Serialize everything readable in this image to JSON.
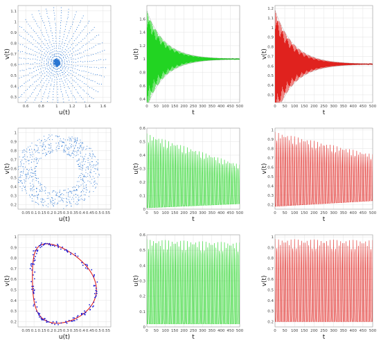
{
  "chart_data": [
    {
      "type": "scatter",
      "row": 0,
      "col": 0,
      "xlabel": "u(t)",
      "ylabel": "v(t)",
      "xlim": [
        0.5,
        1.7
      ],
      "ylim": [
        0.25,
        1.15
      ],
      "xticks": [
        0.6,
        0.8,
        1,
        1.2,
        1.4,
        1.6
      ],
      "yticks": [
        0.3,
        0.4,
        0.5,
        0.6,
        0.7,
        0.8,
        0.9,
        1,
        1.1
      ],
      "kind": "spiral",
      "center": [
        1.0,
        0.62
      ],
      "color": "#2a76d2"
    },
    {
      "type": "line",
      "row": 0,
      "col": 1,
      "xlabel": "t",
      "ylabel": "u(t)",
      "xlim": [
        0,
        500
      ],
      "ylim": [
        0.35,
        1.8
      ],
      "xticks": [
        0,
        50,
        100,
        150,
        200,
        250,
        300,
        350,
        400,
        450,
        500
      ],
      "yticks": [
        0.4,
        0.6,
        0.8,
        1,
        1.2,
        1.4,
        1.6
      ],
      "kind": "decay",
      "center": 1.0,
      "amp0": 0.72,
      "amp_end": 0.0,
      "color": "#22d422"
    },
    {
      "type": "line",
      "row": 0,
      "col": 2,
      "xlabel": "t",
      "ylabel": "v(t)",
      "xlim": [
        0,
        500
      ],
      "ylim": [
        0.22,
        1.23
      ],
      "xticks": [
        0,
        50,
        100,
        150,
        200,
        250,
        300,
        350,
        400,
        450,
        500
      ],
      "yticks": [
        0.3,
        0.4,
        0.5,
        0.6,
        0.7,
        0.8,
        0.9,
        1,
        1.1,
        1.2
      ],
      "kind": "decay",
      "center": 0.62,
      "amp0": 0.56,
      "amp_end": 0.0,
      "color": "#e0221e"
    },
    {
      "type": "scatter",
      "row": 1,
      "col": 0,
      "xlabel": "u(t)",
      "ylabel": "v(t)",
      "xlim": [
        0,
        0.58
      ],
      "ylim": [
        0.15,
        1.05
      ],
      "xticks": [
        0.05,
        0.1,
        0.15,
        0.2,
        0.25,
        0.3,
        0.35,
        0.4,
        0.45,
        0.5,
        0.55
      ],
      "yticks": [
        0.2,
        0.3,
        0.4,
        0.5,
        0.6,
        0.7,
        0.8,
        0.9,
        1
      ],
      "kind": "annulus",
      "center": [
        0.25,
        0.57
      ],
      "color": "#2a76d2"
    },
    {
      "type": "line",
      "row": 1,
      "col": 1,
      "xlabel": "t",
      "ylabel": "u(t)",
      "xlim": [
        0,
        500
      ],
      "ylim": [
        0,
        0.6
      ],
      "xticks": [
        0,
        50,
        100,
        150,
        200,
        250,
        300,
        350,
        400,
        450,
        500
      ],
      "yticks": [
        0,
        0.1,
        0.2,
        0.3,
        0.4,
        0.5,
        0.6
      ],
      "kind": "osc",
      "top0": 0.56,
      "top1": 0.33,
      "bot0": 0.01,
      "bot1": 0.04,
      "color": "#22d422"
    },
    {
      "type": "line",
      "row": 1,
      "col": 2,
      "xlabel": "t",
      "ylabel": "v(t)",
      "xlim": [
        0,
        500
      ],
      "ylim": [
        0.15,
        1.02
      ],
      "xticks": [
        0,
        50,
        100,
        150,
        200,
        250,
        300,
        350,
        400,
        450,
        500
      ],
      "yticks": [
        0.2,
        0.3,
        0.4,
        0.5,
        0.6,
        0.7,
        0.8,
        0.9,
        1
      ],
      "kind": "osc",
      "top0": 0.98,
      "top1": 0.74,
      "bot0": 0.18,
      "bot1": 0.24,
      "color": "#e0221e"
    },
    {
      "type": "scatter",
      "row": 2,
      "col": 0,
      "xlabel": "u(t)",
      "ylabel": "v(t)",
      "xlim": [
        0,
        0.58
      ],
      "ylim": [
        0.15,
        1.02
      ],
      "xticks": [
        0.05,
        0.1,
        0.15,
        0.2,
        0.25,
        0.3,
        0.35,
        0.4,
        0.45,
        0.5,
        0.55
      ],
      "yticks": [
        0.2,
        0.3,
        0.4,
        0.5,
        0.6,
        0.7,
        0.8,
        0.9,
        1
      ],
      "kind": "limit",
      "center": [
        0.25,
        0.56
      ],
      "color": "#1a1ad6",
      "color2": "#e0221e"
    },
    {
      "type": "line",
      "row": 2,
      "col": 1,
      "xlabel": "t",
      "ylabel": "u(t)",
      "xlim": [
        0,
        500
      ],
      "ylim": [
        0,
        0.6
      ],
      "xticks": [
        0,
        50,
        100,
        150,
        200,
        250,
        300,
        350,
        400,
        450,
        500
      ],
      "yticks": [
        0,
        0.1,
        0.2,
        0.3,
        0.4,
        0.5,
        0.6
      ],
      "kind": "osc",
      "top0": 0.57,
      "top1": 0.55,
      "bot0": 0.02,
      "bot1": 0.02,
      "color": "#22d422"
    },
    {
      "type": "line",
      "row": 2,
      "col": 2,
      "xlabel": "t",
      "ylabel": "v(t)",
      "xlim": [
        0,
        500
      ],
      "ylim": [
        0.15,
        1.02
      ],
      "xticks": [
        0,
        50,
        100,
        150,
        200,
        250,
        300,
        350,
        400,
        450,
        500
      ],
      "yticks": [
        0.2,
        0.3,
        0.4,
        0.5,
        0.6,
        0.7,
        0.8,
        0.9,
        1
      ],
      "kind": "osc",
      "top0": 0.98,
      "top1": 0.97,
      "bot0": 0.2,
      "bot1": 0.2,
      "color": "#e0221e"
    }
  ]
}
